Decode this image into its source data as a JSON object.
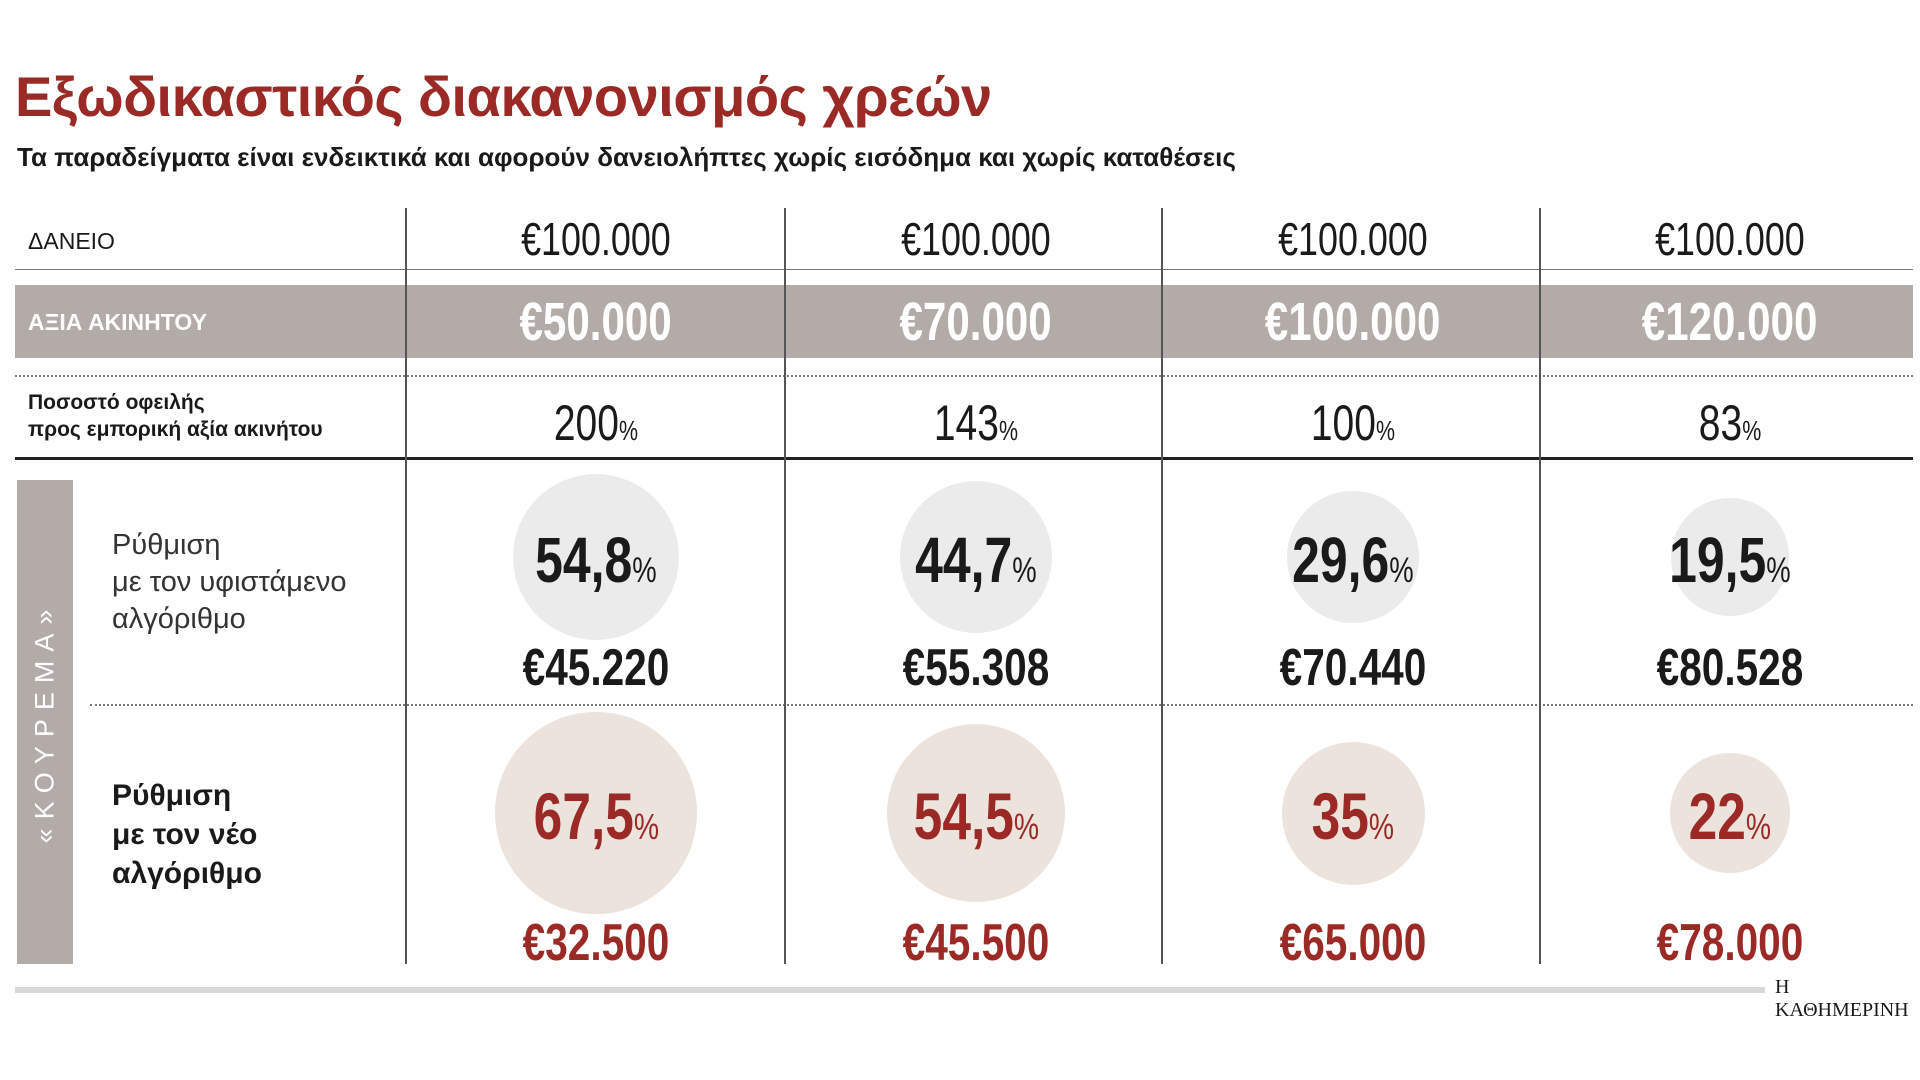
{
  "title": "Εξωδικαστικός διακανονισμός χρεών",
  "subtitle": "Τα παραδείγματα είναι ενδεικτικά και αφορούν δανειολήπτες χωρίς εισόδημα και χωρίς καταθέσεις",
  "rows": {
    "loan_label": "ΔΑΝΕΙΟ",
    "property_label": "ΑΞΙΑ ΑΚΙΝΗΤΟΥ",
    "ratio_label_1": "Ποσοστό οφειλής",
    "ratio_label_2": "προς εμπορική αξία ακινήτου",
    "haircut_label": "«ΚΟΥΡΕΜΑ»",
    "current_label_1": "Ρύθμιση",
    "current_label_2": "με τον υφιστάμενο",
    "current_label_3": "αλγόριθμο",
    "new_label_1": "Ρύθμιση",
    "new_label_2": "με τον νέο",
    "new_label_3": "αλγόριθμο"
  },
  "percent_sign": "%",
  "columns": [
    {
      "loan": "€100.000",
      "property": "€50.000",
      "ratio": "200",
      "current_pct": "54,8",
      "current_amount": "€45.220",
      "new_pct": "67,5",
      "new_amount": "€32.500"
    },
    {
      "loan": "€100.000",
      "property": "€70.000",
      "ratio": "143",
      "current_pct": "44,7",
      "current_amount": "€55.308",
      "new_pct": "54,5",
      "new_amount": "€45.500"
    },
    {
      "loan": "€100.000",
      "property": "€100.000",
      "ratio": "100",
      "current_pct": "29,6",
      "current_amount": "€70.440",
      "new_pct": "35",
      "new_amount": "€65.000"
    },
    {
      "loan": "€100.000",
      "property": "€120.000",
      "ratio": "83",
      "current_pct": "19,5",
      "current_amount": "€80.528",
      "new_pct": "22",
      "new_amount": "€78.000"
    }
  ],
  "chart_data": {
    "type": "table",
    "title": "Εξωδικαστικός διακανονισμός χρεών",
    "categories": [
      "€50.000",
      "€70.000",
      "€100.000",
      "€120.000"
    ],
    "series": [
      {
        "name": "Ρύθμιση με τον υφιστάμενο αλγόριθμο (%)",
        "values": [
          54.8,
          44.7,
          29.6,
          19.5
        ]
      },
      {
        "name": "Ρύθμιση με τον νέο αλγόριθμο (%)",
        "values": [
          67.5,
          54.5,
          35,
          22
        ]
      },
      {
        "name": "Ποσοστό οφειλής (%)",
        "values": [
          200,
          143,
          100,
          83
        ]
      }
    ]
  },
  "footer": {
    "brand": "Η ΚΑΘΗΜΕΡΙΝΗ"
  },
  "colors": {
    "accent": "#9b2a26",
    "band": "#b3aba8",
    "circle_current": "#ebebeb",
    "circle_new": "#ebe3dc"
  }
}
